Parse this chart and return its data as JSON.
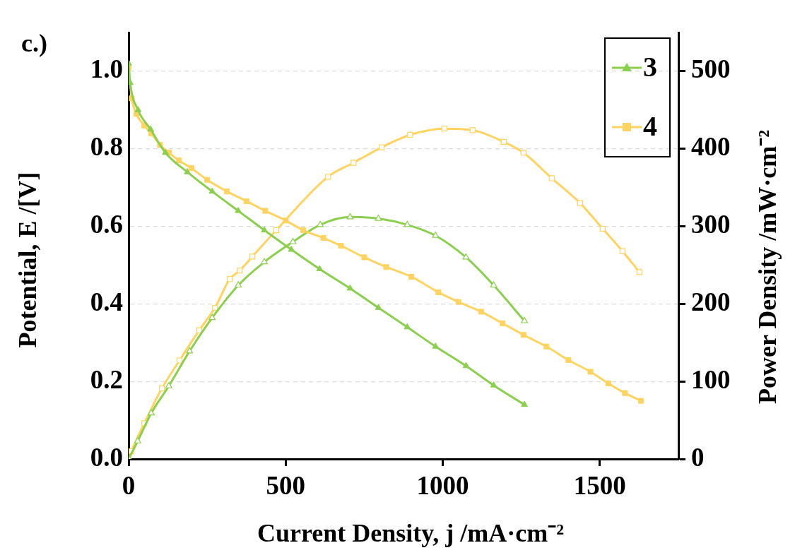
{
  "chart_data": {
    "type": "line",
    "title": "c.)",
    "xlabel": "Current Density, j /mA·cm⁻²",
    "ylabel": "Potential, E /[V]",
    "y2label": "Power Density /mW·cm⁻²",
    "xlim": [
      0,
      1750
    ],
    "xticks": [
      0,
      500,
      1000,
      1500
    ],
    "ylim": [
      0,
      1.1
    ],
    "yticks": [
      {
        "value": 0,
        "label": "0.0"
      },
      {
        "value": 0.2,
        "label": "0.2"
      },
      {
        "value": 0.4,
        "label": "0.4"
      },
      {
        "value": 0.6,
        "label": "0.6"
      },
      {
        "value": 0.8,
        "label": "0.8"
      },
      {
        "value": 1,
        "label": "1.0"
      }
    ],
    "y2lim": [
      0,
      550
    ],
    "y2ticks": [
      0,
      100,
      200,
      300,
      400,
      500
    ],
    "grid": "y",
    "legend": "top right",
    "line_style": "solid",
    "series": [
      {
        "name": "3",
        "color": "#8ccf4e",
        "marker": "triangle",
        "x": [
          0,
          5,
          30,
          70,
          117,
          187,
          266,
          349,
          432,
          518,
          608,
          705,
          795,
          887,
          977,
          1074,
          1162,
          1260
        ],
        "values": [
          1.02,
          0.97,
          0.9,
          0.85,
          0.79,
          0.74,
          0.69,
          0.64,
          0.59,
          0.54,
          0.49,
          0.44,
          0.39,
          0.34,
          0.29,
          0.24,
          0.19,
          0.14
        ]
      },
      {
        "name": "4",
        "color": "#ffd35f",
        "marker": "square",
        "x": [
          0,
          10,
          25,
          50,
          72,
          100,
          128,
          160,
          200,
          250,
          313,
          375,
          435,
          500,
          556,
          620,
          676,
          750,
          820,
          900,
          986,
          1050,
          1122,
          1190,
          1257,
          1330,
          1400,
          1470,
          1527,
          1580,
          1631
        ],
        "values": [
          1.01,
          0.93,
          0.89,
          0.86,
          0.84,
          0.81,
          0.79,
          0.77,
          0.75,
          0.72,
          0.69,
          0.665,
          0.64,
          0.615,
          0.59,
          0.57,
          0.55,
          0.52,
          0.495,
          0.47,
          0.43,
          0.405,
          0.38,
          0.35,
          0.32,
          0.29,
          0.255,
          0.225,
          0.195,
          0.17,
          0.15
        ]
      },
      {
        "color": "#8ccf4e",
        "marker": "triangle",
        "axis": "y2",
        "x": [
          0,
          29,
          72,
          128,
          194,
          266,
          349,
          432,
          523,
          610,
          705,
          795,
          887,
          977,
          1074,
          1162,
          1260
        ],
        "values": [
          0,
          23,
          59,
          94,
          139,
          182,
          224,
          254,
          280,
          302,
          312,
          310,
          302,
          288,
          260,
          224,
          178
        ]
      },
      {
        "color": "#ffd35f",
        "marker": "square",
        "axis": "y2",
        "x": [
          0,
          9,
          50,
          106,
          162,
          225,
          275,
          322,
          354,
          394,
          470,
          635,
          716,
          806,
          896,
          1005,
          1095,
          1194,
          1257,
          1347,
          1437,
          1509,
          1572,
          1626
        ],
        "values": [
          0,
          10,
          46,
          91,
          127,
          166,
          195,
          232,
          243,
          261,
          295,
          364,
          382,
          402,
          418,
          426,
          424,
          409,
          395,
          362,
          330,
          297,
          268,
          241
        ]
      }
    ]
  }
}
